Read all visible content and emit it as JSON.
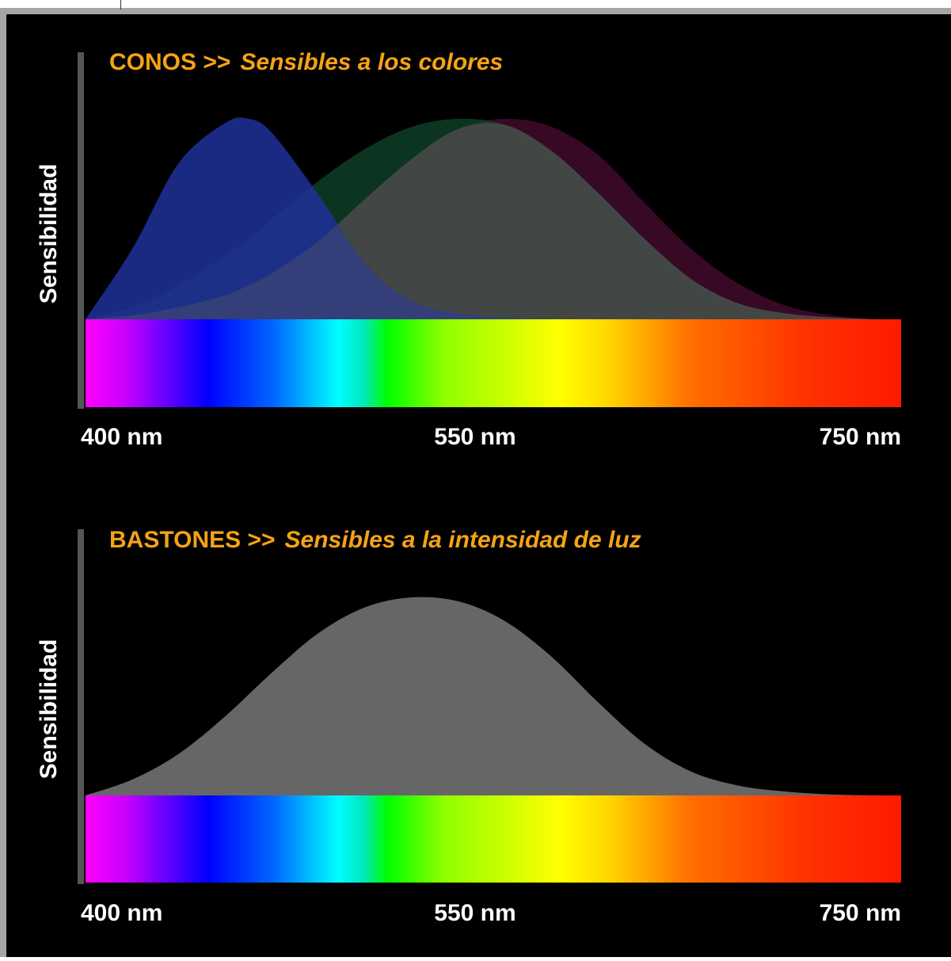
{
  "chart_data": [
    {
      "type": "area",
      "title": "CONOS >>",
      "subtitle": "Sensibles a los colores",
      "ylabel": "Sensibilidad",
      "xlabel": "",
      "x_tick_labels": [
        "400 nm",
        "550 nm",
        "750 nm"
      ],
      "xlim": [
        400,
        750
      ],
      "ylim": [
        0,
        1
      ],
      "grid": false,
      "legend": "none",
      "x": [
        400,
        420,
        440,
        460,
        470,
        480,
        500,
        520,
        540,
        560,
        580,
        600,
        620,
        640,
        660,
        680,
        700,
        720,
        740,
        750
      ],
      "series": [
        {
          "color": "#0b1f8a",
          "values": [
            0.0,
            0.35,
            0.78,
            0.98,
            1.0,
            0.93,
            0.62,
            0.28,
            0.09,
            0.03,
            0.01,
            0.0,
            0.0,
            0.0,
            0.0,
            0.0,
            0.0,
            0.0,
            0.0,
            0.0
          ]
        },
        {
          "color": "#0f4a2c",
          "values": [
            0.0,
            0.06,
            0.17,
            0.32,
            0.4,
            0.5,
            0.69,
            0.85,
            0.96,
            1.0,
            0.97,
            0.84,
            0.63,
            0.4,
            0.2,
            0.08,
            0.03,
            0.01,
            0.0,
            0.0
          ]
        },
        {
          "color": "#3a0a26",
          "values": [
            0.0,
            0.02,
            0.06,
            0.12,
            0.17,
            0.23,
            0.39,
            0.6,
            0.8,
            0.95,
            1.0,
            0.96,
            0.82,
            0.58,
            0.35,
            0.18,
            0.07,
            0.02,
            0.0,
            0.0
          ]
        }
      ],
      "title_color": "#f5a315",
      "label_color": "#ffffff"
    },
    {
      "type": "area",
      "title": "BASTONES >>",
      "subtitle": "Sensibles a la intensidad de luz",
      "ylabel": "Sensibilidad",
      "xlabel": "",
      "x_tick_labels": [
        "400 nm",
        "550 nm",
        "750 nm"
      ],
      "xlim": [
        400,
        750
      ],
      "ylim": [
        0,
        1
      ],
      "grid": false,
      "legend": "none",
      "x": [
        400,
        420,
        440,
        460,
        480,
        500,
        520,
        540,
        560,
        580,
        600,
        620,
        640,
        660,
        680,
        700,
        720,
        740,
        750
      ],
      "series": [
        {
          "color": "#666666",
          "values": [
            0.0,
            0.08,
            0.21,
            0.4,
            0.62,
            0.82,
            0.95,
            1.0,
            0.98,
            0.88,
            0.7,
            0.47,
            0.26,
            0.12,
            0.05,
            0.02,
            0.005,
            0.0,
            0.0
          ]
        }
      ],
      "title_color": "#f5a315",
      "label_color": "#ffffff"
    }
  ]
}
